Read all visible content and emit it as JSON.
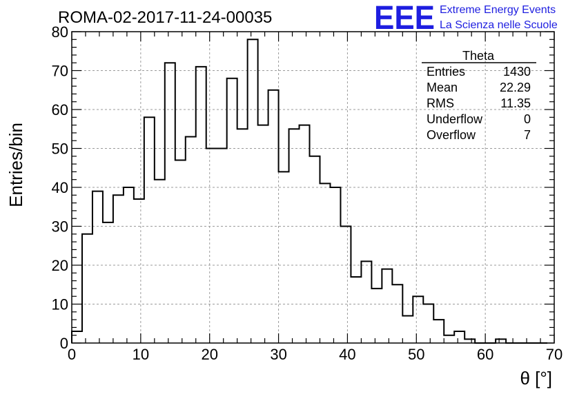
{
  "chart_data": {
    "type": "bar",
    "title": "ROMA-02-2017-11-24-00035",
    "xlabel": "θ [°]",
    "ylabel": "Entries/bin",
    "xlim": [
      0,
      70
    ],
    "ylim": [
      0,
      80
    ],
    "bin_width": 1.5,
    "x_ticks": [
      "0",
      "10",
      "20",
      "30",
      "40",
      "50",
      "60",
      "70"
    ],
    "y_ticks": [
      "0",
      "10",
      "20",
      "30",
      "40",
      "50",
      "60",
      "70",
      "80"
    ],
    "grid": true,
    "values": [
      3,
      28,
      39,
      31,
      38,
      40,
      37,
      58,
      42,
      72,
      47,
      53,
      71,
      50,
      50,
      68,
      55,
      78,
      56,
      65,
      44,
      55,
      56,
      48,
      41,
      40,
      30,
      17,
      21,
      14,
      19,
      15,
      7,
      12,
      10,
      6,
      2,
      3,
      1,
      0,
      0,
      1,
      0,
      0,
      0,
      0
    ],
    "stats_box": {
      "title": "Theta",
      "rows": [
        {
          "label": "Entries",
          "value": "1430"
        },
        {
          "label": "Mean",
          "value": "22.29"
        },
        {
          "label": "RMS",
          "value": "11.35"
        },
        {
          "label": "Underflow",
          "value": "0"
        },
        {
          "label": "Overflow",
          "value": "7"
        }
      ]
    }
  },
  "brand": {
    "logo": "EEE",
    "line1": "Extreme Energy Events",
    "line2": "La Scienza nelle Scuole",
    "color": "#1e1ee0"
  }
}
